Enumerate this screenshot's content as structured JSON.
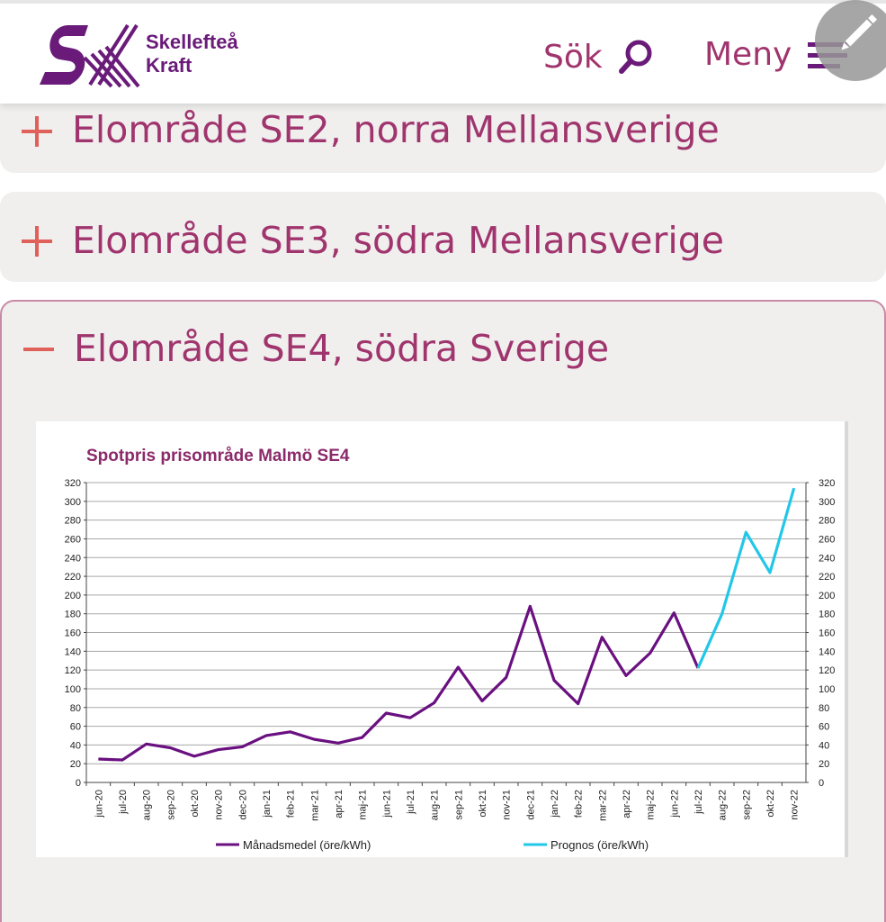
{
  "header": {
    "brand_line1": "Skellefteå",
    "brand_line2": "Kraft",
    "search_label": "Sök",
    "menu_label": "Meny"
  },
  "accordions": [
    {
      "title": "Elområde SE2, norra Mellansverige",
      "state": "collapsed"
    },
    {
      "title": "Elområde SE3, södra Mellansverige",
      "state": "collapsed"
    },
    {
      "title": "Elområde SE4, södra Sverige",
      "state": "expanded"
    }
  ],
  "colors": {
    "brand": "#6a1b79",
    "accent": "#a0356e",
    "icon_accent": "#e0605a",
    "series_actual": "#6a1080",
    "series_forecast": "#22c7e8"
  },
  "chart_data": {
    "type": "line",
    "title": "Spotpris prisområde Malmö SE4",
    "ylim": [
      0,
      320
    ],
    "yticks": [
      0,
      20,
      40,
      60,
      80,
      100,
      120,
      140,
      160,
      180,
      200,
      220,
      240,
      260,
      280,
      300,
      320
    ],
    "dual_y_axis": true,
    "grid": true,
    "legend_position": "bottom",
    "categories": [
      "jun-20",
      "jul-20",
      "aug-20",
      "sep-20",
      "okt-20",
      "nov-20",
      "dec-20",
      "jan-21",
      "feb-21",
      "mar-21",
      "apr-21",
      "maj-21",
      "jun-21",
      "jul-21",
      "aug-21",
      "sep-21",
      "okt-21",
      "nov-21",
      "dec-21",
      "jan-22",
      "feb-22",
      "mar-22",
      "apr-22",
      "maj-22",
      "jun-22",
      "jul-22",
      "aug-22",
      "sep-22",
      "okt-22",
      "nov-22"
    ],
    "series": [
      {
        "name": "Månadsmedel (öre/kWh)",
        "values": [
          25,
          24,
          41,
          37,
          28,
          35,
          38,
          50,
          54,
          46,
          42,
          48,
          74,
          69,
          85,
          123,
          87,
          112,
          188,
          109,
          84,
          155,
          114,
          138,
          181,
          122,
          null,
          null,
          null,
          null
        ]
      },
      {
        "name": "Prognos (öre/kWh)",
        "values": [
          null,
          null,
          null,
          null,
          null,
          null,
          null,
          null,
          null,
          null,
          null,
          null,
          null,
          null,
          null,
          null,
          null,
          null,
          null,
          null,
          null,
          null,
          null,
          null,
          null,
          122,
          180,
          267,
          224,
          314
        ]
      }
    ]
  }
}
